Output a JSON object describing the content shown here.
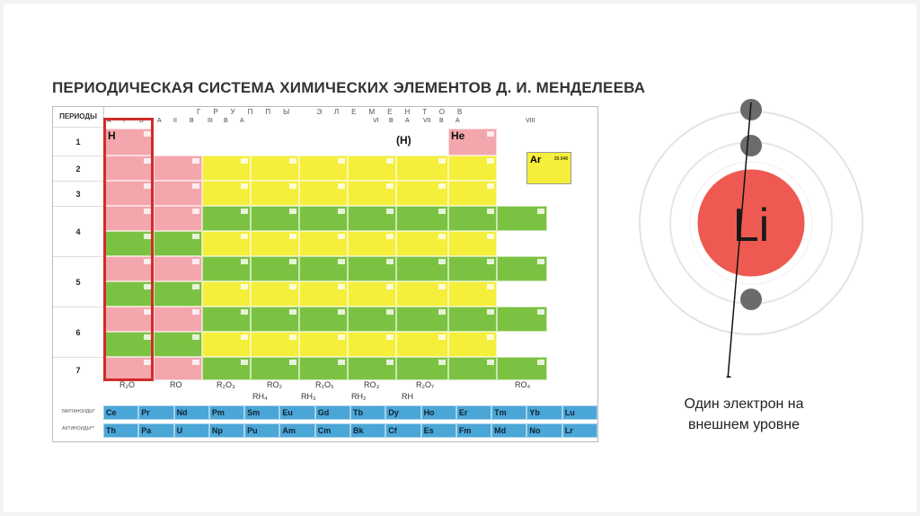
{
  "title": "ПЕРИОДИЧЕСКАЯ СИСТЕМА ХИМИЧЕСКИХ ЭЛЕМЕНТОВ Д. И. МЕНДЕЛЕЕВА",
  "table": {
    "periods_label": "ПЕРИОДЫ",
    "groups_label": "ГРУППЫ ЭЛЕМЕНТОВ",
    "group_headers": [
      "A",
      "I",
      "B",
      "A",
      "II",
      "B",
      "III",
      "B",
      "A",
      "VI",
      "B",
      "A",
      "VII",
      "B",
      "A",
      "VIII"
    ],
    "periods": [
      "1",
      "2",
      "3",
      "4",
      "5",
      "6",
      "7"
    ],
    "period1": {
      "h": "H",
      "h_paren": "(H)",
      "he": "He"
    },
    "oxides": [
      "R₂O",
      "RO",
      "R₂O₃",
      "RO₂",
      "R₂O₅",
      "RO₃",
      "R₂O₇",
      "RO₄"
    ],
    "hydrides": [
      "RH₄",
      "RH₃",
      "RH₂",
      "RH"
    ],
    "lanthanides_label": "ЛАНТАНОИДЫ*",
    "actinides_label": "АКТИНОИДЫ**",
    "lanthanides": [
      "Ce",
      "Pr",
      "Nd",
      "Pm",
      "Sm",
      "Eu",
      "Gd",
      "Tb",
      "Dy",
      "Ho",
      "Er",
      "Tm",
      "Yb",
      "Lu"
    ],
    "actinides": [
      "Th",
      "Pa",
      "U",
      "Np",
      "Pu",
      "Am",
      "Cm",
      "Bk",
      "Cf",
      "Es",
      "Fm",
      "Md",
      "No",
      "Lr"
    ],
    "legend": {
      "symbol": "Ar",
      "value": "39.948"
    }
  },
  "atom": {
    "symbol": "Li",
    "nucleus_color": "#ee5a52",
    "electron_color": "#6b6b6b"
  },
  "caption": {
    "line1": "Один электрон на",
    "line2": "внешнем уровне"
  }
}
